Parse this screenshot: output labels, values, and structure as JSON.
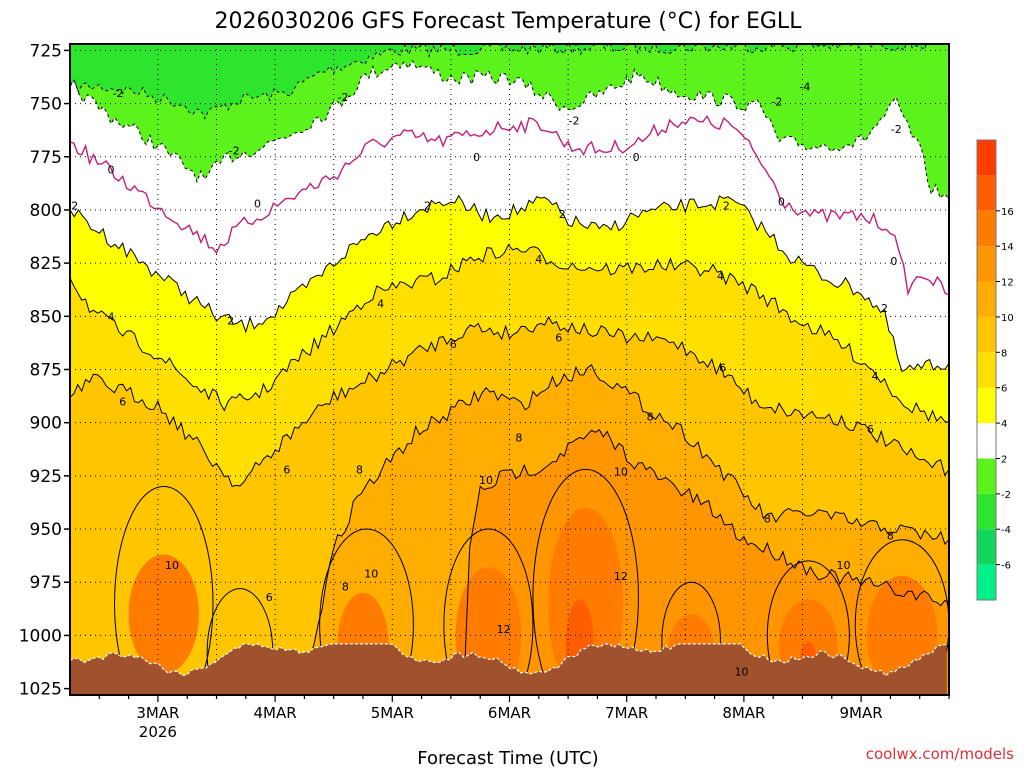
{
  "chart_data": {
    "type": "contour",
    "title": "2026030206 GFS Forecast Temperature (°C) for EGLL",
    "xlabel": "Forecast Time (UTC)",
    "ylabel": "",
    "credit": "coolwx.com/models",
    "credit_color": "#e0303a",
    "pressure_levels": [
      725,
      750,
      775,
      800,
      825,
      850,
      875,
      900,
      925,
      950,
      975,
      1000,
      1025
    ],
    "y_range_hpa": [
      722,
      1028
    ],
    "x_range_days": [
      2.25,
      9.75
    ],
    "x_ticks": [
      {
        "day": 3,
        "label": "3MAR",
        "sublabel": "2026"
      },
      {
        "day": 4,
        "label": "4MAR",
        "sublabel": ""
      },
      {
        "day": 5,
        "label": "5MAR",
        "sublabel": ""
      },
      {
        "day": 6,
        "label": "6MAR",
        "sublabel": ""
      },
      {
        "day": 7,
        "label": "7MAR",
        "sublabel": ""
      },
      {
        "day": 8,
        "label": "8MAR",
        "sublabel": ""
      },
      {
        "day": 9,
        "label": "9MAR",
        "sublabel": ""
      }
    ],
    "colorbar": {
      "levels": [
        -8,
        -6,
        -4,
        -2,
        2,
        4,
        6,
        8,
        10,
        12,
        14,
        16,
        18
      ],
      "labels": [
        "-6",
        "-4",
        "-2",
        "2",
        "4",
        "6",
        "8",
        "10",
        "12",
        "14",
        "16"
      ],
      "colors": [
        "#00f08a",
        "#12d65a",
        "#2ee52e",
        "#5cf21c",
        "#ffffff",
        "#ffff00",
        "#ffdf00",
        "#ffc600",
        "#ffae00",
        "#ff9500",
        "#ff7c00",
        "#ff5e00",
        "#ff3c00"
      ]
    },
    "ground_color": "#a0522d",
    "freezing_line_color": "#c0207a",
    "contour_labels": [
      {
        "day": 2.66,
        "hpa": 745,
        "text": "-2"
      },
      {
        "day": 3.65,
        "hpa": 772,
        "text": "-2"
      },
      {
        "day": 4.58,
        "hpa": 747,
        "text": "-2"
      },
      {
        "day": 6.55,
        "hpa": 758,
        "text": "-2"
      },
      {
        "day": 8.28,
        "hpa": 749,
        "text": "-2"
      },
      {
        "day": 9.3,
        "hpa": 762,
        "text": "-2"
      },
      {
        "day": 8.52,
        "hpa": 742,
        "text": "-4"
      },
      {
        "day": 2.6,
        "hpa": 781,
        "text": "0"
      },
      {
        "day": 3.85,
        "hpa": 797,
        "text": "0"
      },
      {
        "day": 5.72,
        "hpa": 775,
        "text": "0"
      },
      {
        "day": 7.08,
        "hpa": 775,
        "text": "0"
      },
      {
        "day": 8.32,
        "hpa": 796,
        "text": "0"
      },
      {
        "day": 9.28,
        "hpa": 824,
        "text": "0"
      },
      {
        "day": 2.29,
        "hpa": 798,
        "text": "2"
      },
      {
        "day": 3.62,
        "hpa": 852,
        "text": "2"
      },
      {
        "day": 5.3,
        "hpa": 798,
        "text": "2"
      },
      {
        "day": 6.45,
        "hpa": 802,
        "text": "2"
      },
      {
        "day": 7.85,
        "hpa": 798,
        "text": "2"
      },
      {
        "day": 9.2,
        "hpa": 846,
        "text": "2"
      },
      {
        "day": 2.6,
        "hpa": 850,
        "text": "4"
      },
      {
        "day": 4.9,
        "hpa": 844,
        "text": "4"
      },
      {
        "day": 6.25,
        "hpa": 823,
        "text": "4"
      },
      {
        "day": 7.8,
        "hpa": 831,
        "text": "4"
      },
      {
        "day": 9.12,
        "hpa": 878,
        "text": "4"
      },
      {
        "day": 2.7,
        "hpa": 890,
        "text": "6"
      },
      {
        "day": 4.1,
        "hpa": 922,
        "text": "6"
      },
      {
        "day": 5.52,
        "hpa": 863,
        "text": "6"
      },
      {
        "day": 6.42,
        "hpa": 860,
        "text": "6"
      },
      {
        "day": 7.82,
        "hpa": 874,
        "text": "6"
      },
      {
        "day": 9.08,
        "hpa": 903,
        "text": "6"
      },
      {
        "day": 3.95,
        "hpa": 982,
        "text": "6"
      },
      {
        "day": 4.72,
        "hpa": 922,
        "text": "8"
      },
      {
        "day": 6.08,
        "hpa": 907,
        "text": "8"
      },
      {
        "day": 7.2,
        "hpa": 897,
        "text": "8"
      },
      {
        "day": 8.2,
        "hpa": 945,
        "text": "8"
      },
      {
        "day": 9.25,
        "hpa": 953,
        "text": "8"
      },
      {
        "day": 4.6,
        "hpa": 977,
        "text": "8"
      },
      {
        "day": 3.12,
        "hpa": 967,
        "text": "10"
      },
      {
        "day": 4.82,
        "hpa": 971,
        "text": "10"
      },
      {
        "day": 5.8,
        "hpa": 927,
        "text": "10"
      },
      {
        "day": 6.95,
        "hpa": 923,
        "text": "10"
      },
      {
        "day": 8.85,
        "hpa": 967,
        "text": "10"
      },
      {
        "day": 7.98,
        "hpa": 1017,
        "text": "10"
      },
      {
        "day": 6.95,
        "hpa": 972,
        "text": "12"
      },
      {
        "day": 5.95,
        "hpa": 997,
        "text": "12"
      }
    ]
  }
}
